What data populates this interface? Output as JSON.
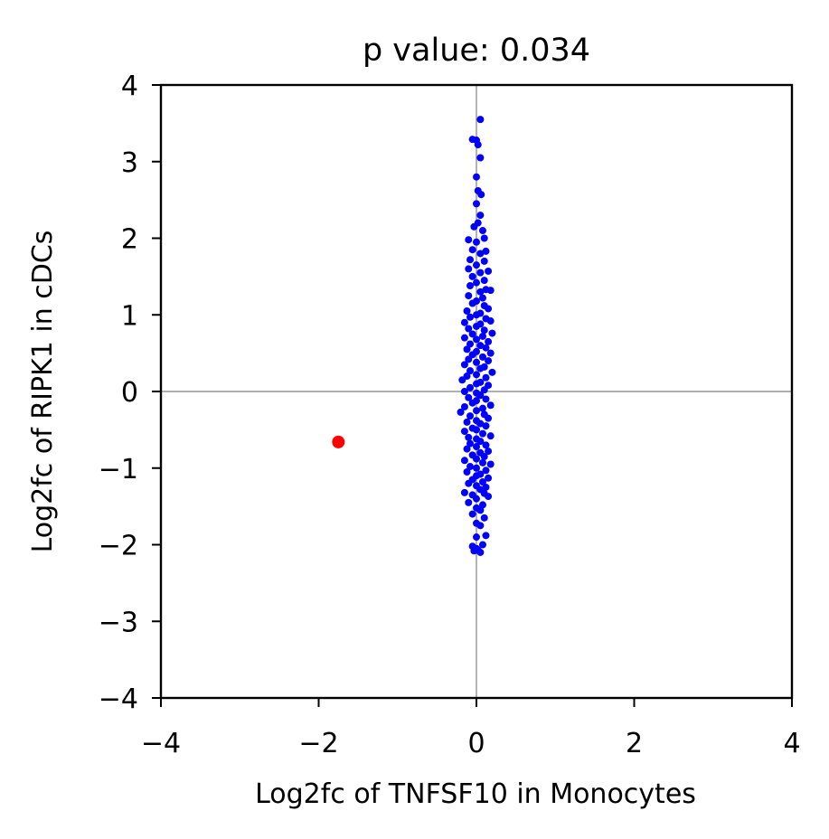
{
  "chart_data": {
    "type": "scatter",
    "title": "p value: 0.034",
    "xlabel": "Log2fc of TNFSF10 in Monocytes",
    "ylabel": "Log2fc of RIPK1 in cDCs",
    "xlim": [
      -4,
      4
    ],
    "ylim": [
      -4,
      4
    ],
    "xticks": [
      -4,
      -2,
      0,
      2,
      4
    ],
    "yticks": [
      -4,
      -3,
      -2,
      -1,
      0,
      1,
      2,
      3,
      4
    ],
    "xtick_labels": [
      "−4",
      "−2",
      "0",
      "2",
      "4"
    ],
    "ytick_labels": [
      "−4",
      "−3",
      "−2",
      "−1",
      "0",
      "1",
      "2",
      "3",
      "4"
    ],
    "reference_lines": {
      "x": 0,
      "y": 0,
      "color": "#808080"
    },
    "grid": false,
    "series": [
      {
        "color": "#0000ff",
        "points": [
          [
            0.05,
            3.55
          ],
          [
            -0.05,
            3.29
          ],
          [
            0.0,
            3.28
          ],
          [
            0.02,
            3.22
          ],
          [
            0.05,
            3.05
          ],
          [
            0.0,
            2.8
          ],
          [
            0.02,
            2.62
          ],
          [
            0.06,
            2.57
          ],
          [
            0.0,
            2.45
          ],
          [
            0.05,
            2.3
          ],
          [
            0.02,
            2.2
          ],
          [
            -0.03,
            2.15
          ],
          [
            0.08,
            2.1
          ],
          [
            -0.1,
            1.98
          ],
          [
            0.1,
            2.0
          ],
          [
            0.0,
            1.95
          ],
          [
            -0.05,
            1.85
          ],
          [
            0.12,
            1.83
          ],
          [
            0.05,
            1.8
          ],
          [
            -0.08,
            1.72
          ],
          [
            0.1,
            1.7
          ],
          [
            0.0,
            1.65
          ],
          [
            -0.1,
            1.6
          ],
          [
            0.15,
            1.57
          ],
          [
            0.05,
            1.55
          ],
          [
            -0.05,
            1.5
          ],
          [
            0.1,
            1.45
          ],
          [
            0.0,
            1.42
          ],
          [
            -0.08,
            1.38
          ],
          [
            0.12,
            1.33
          ],
          [
            0.18,
            1.32
          ],
          [
            0.05,
            1.3
          ],
          [
            -0.1,
            1.25
          ],
          [
            0.08,
            1.22
          ],
          [
            0.0,
            1.18
          ],
          [
            -0.05,
            1.15
          ],
          [
            0.1,
            1.12
          ],
          [
            0.15,
            1.08
          ],
          [
            -0.12,
            1.05
          ],
          [
            0.05,
            1.02
          ],
          [
            0.0,
            1.0
          ],
          [
            -0.08,
            0.97
          ],
          [
            0.12,
            0.95
          ],
          [
            0.18,
            0.92
          ],
          [
            -0.15,
            0.9
          ],
          [
            0.05,
            0.88
          ],
          [
            0.0,
            0.85
          ],
          [
            -0.1,
            0.82
          ],
          [
            0.1,
            0.8
          ],
          [
            0.2,
            0.76
          ],
          [
            -0.05,
            0.75
          ],
          [
            0.08,
            0.72
          ],
          [
            -0.15,
            0.7
          ],
          [
            0.0,
            0.68
          ],
          [
            0.15,
            0.65
          ],
          [
            -0.08,
            0.62
          ],
          [
            0.05,
            0.6
          ],
          [
            0.12,
            0.57
          ],
          [
            -0.12,
            0.55
          ],
          [
            0.0,
            0.52
          ],
          [
            0.18,
            0.5
          ],
          [
            -0.05,
            0.48
          ],
          [
            0.08,
            0.45
          ],
          [
            -0.1,
            0.42
          ],
          [
            0.15,
            0.4
          ],
          [
            0.0,
            0.38
          ],
          [
            -0.15,
            0.35
          ],
          [
            0.1,
            0.32
          ],
          [
            0.05,
            0.3
          ],
          [
            -0.08,
            0.27
          ],
          [
            0.2,
            0.25
          ],
          [
            0.0,
            0.22
          ],
          [
            -0.12,
            0.2
          ],
          [
            0.12,
            0.18
          ],
          [
            -0.18,
            0.15
          ],
          [
            0.05,
            0.12
          ],
          [
            0.0,
            0.1
          ],
          [
            0.15,
            0.08
          ],
          [
            -0.08,
            0.05
          ],
          [
            0.1,
            0.02
          ],
          [
            -0.15,
            0.0
          ],
          [
            0.0,
            -0.02
          ],
          [
            0.05,
            -0.05
          ],
          [
            -0.1,
            -0.08
          ],
          [
            0.12,
            -0.1
          ],
          [
            0.0,
            -0.12
          ],
          [
            -0.05,
            -0.15
          ],
          [
            0.18,
            -0.18
          ],
          [
            -0.15,
            -0.2
          ],
          [
            0.08,
            -0.22
          ],
          [
            0.0,
            -0.25
          ],
          [
            -0.2,
            -0.27
          ],
          [
            0.1,
            -0.3
          ],
          [
            -0.08,
            -0.32
          ],
          [
            0.15,
            -0.35
          ],
          [
            0.0,
            -0.38
          ],
          [
            -0.12,
            -0.4
          ],
          [
            0.05,
            -0.42
          ],
          [
            0.12,
            -0.45
          ],
          [
            -0.05,
            -0.48
          ],
          [
            0.0,
            -0.5
          ],
          [
            -0.15,
            -0.52
          ],
          [
            0.08,
            -0.55
          ],
          [
            0.18,
            -0.58
          ],
          [
            -0.1,
            -0.6
          ],
          [
            0.0,
            -0.62
          ],
          [
            0.05,
            -0.65
          ],
          [
            -0.08,
            -0.68
          ],
          [
            0.12,
            -0.7
          ],
          [
            0.0,
            -0.72
          ],
          [
            -0.12,
            -0.75
          ],
          [
            0.15,
            -0.78
          ],
          [
            0.05,
            -0.8
          ],
          [
            -0.05,
            -0.83
          ],
          [
            0.1,
            -0.85
          ],
          [
            0.0,
            -0.88
          ],
          [
            -0.15,
            -0.9
          ],
          [
            0.08,
            -0.93
          ],
          [
            0.18,
            -0.95
          ],
          [
            -0.08,
            -0.98
          ],
          [
            0.0,
            -1.0
          ],
          [
            0.12,
            -1.03
          ],
          [
            -0.12,
            -1.05
          ],
          [
            0.05,
            -1.08
          ],
          [
            0.0,
            -1.1
          ],
          [
            0.15,
            -1.13
          ],
          [
            -0.05,
            -1.15
          ],
          [
            0.08,
            -1.18
          ],
          [
            -0.1,
            -1.2
          ],
          [
            0.0,
            -1.23
          ],
          [
            0.12,
            -1.25
          ],
          [
            0.05,
            -1.28
          ],
          [
            -0.15,
            -1.32
          ],
          [
            0.1,
            -1.33
          ],
          [
            -0.05,
            -1.35
          ],
          [
            0.15,
            -1.37
          ],
          [
            0.0,
            -1.4
          ],
          [
            -0.1,
            -1.45
          ],
          [
            0.08,
            -1.48
          ],
          [
            0.0,
            -1.52
          ],
          [
            0.05,
            -1.55
          ],
          [
            -0.05,
            -1.6
          ],
          [
            0.1,
            -1.65
          ],
          [
            0.0,
            -1.72
          ],
          [
            0.05,
            -1.75
          ],
          [
            0.12,
            -1.88
          ],
          [
            0.0,
            -1.9
          ],
          [
            -0.05,
            -2.02
          ],
          [
            0.08,
            -2.0
          ],
          [
            0.0,
            -2.05
          ],
          [
            -0.03,
            -2.08
          ],
          [
            0.05,
            -2.1
          ],
          [
            0.02,
            -2.07
          ]
        ]
      },
      {
        "color": "#ff0000",
        "points": [
          [
            -1.75,
            -0.66
          ]
        ]
      }
    ]
  }
}
